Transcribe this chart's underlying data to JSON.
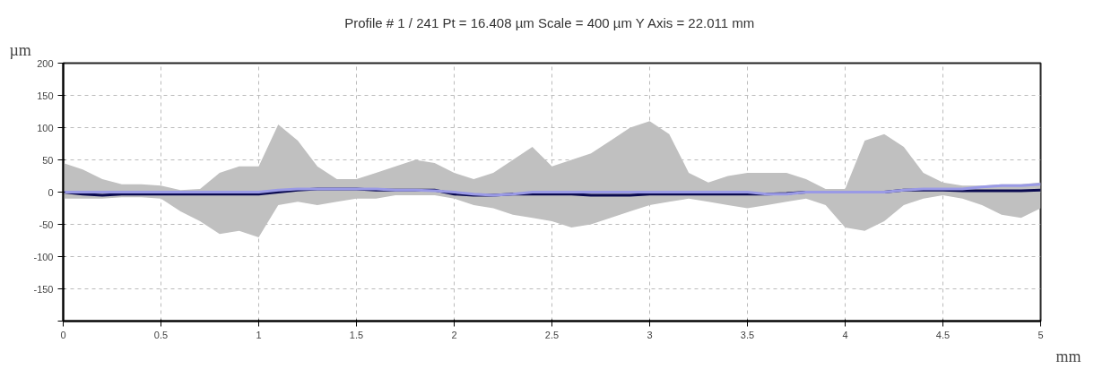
{
  "chart_data": {
    "type": "line",
    "title": "Profile # 1 / 241 Pt = 16.408 µm  Scale = 400 µm Y Axis = 22.011 mm",
    "xlabel": "mm",
    "ylabel": "µm",
    "x": [
      0,
      0.1,
      0.2,
      0.3,
      0.4,
      0.5,
      0.6,
      0.7,
      0.8,
      0.9,
      1.0,
      1.1,
      1.2,
      1.3,
      1.4,
      1.5,
      1.6,
      1.7,
      1.8,
      1.9,
      2.0,
      2.1,
      2.2,
      2.3,
      2.4,
      2.5,
      2.6,
      2.7,
      2.8,
      2.9,
      3.0,
      3.1,
      3.2,
      3.3,
      3.4,
      3.5,
      3.6,
      3.7,
      3.8,
      3.9,
      4.0,
      4.1,
      4.2,
      4.3,
      4.4,
      4.5,
      4.6,
      4.7,
      4.8,
      4.9,
      5.0
    ],
    "series": [
      {
        "color": "#0a0a50",
        "values": [
          0,
          -3,
          -5,
          -3,
          -3,
          -3,
          -3,
          -3,
          -3,
          -3,
          -3,
          0,
          3,
          5,
          5,
          5,
          3,
          3,
          3,
          3,
          -3,
          -5,
          -5,
          -3,
          -3,
          -3,
          -3,
          -5,
          -5,
          -5,
          -3,
          -3,
          -3,
          -3,
          -3,
          -3,
          -3,
          -2,
          0,
          0,
          0,
          0,
          0,
          3,
          3,
          3,
          2,
          2,
          2,
          2,
          3
        ],
        "lower": [
          -10,
          -10,
          -10,
          -8,
          -8,
          -10,
          -30,
          -45,
          -65,
          -60,
          -70,
          -20,
          -15,
          -20,
          -15,
          -10,
          -10,
          -5,
          -5,
          -5,
          -10,
          -20,
          -25,
          -35,
          -40,
          -45,
          -55,
          -50,
          -40,
          -30,
          -20,
          -15,
          -10,
          -15,
          -20,
          -25,
          -20,
          -15,
          -10,
          -20,
          -55,
          -60,
          -45,
          -20,
          -10,
          -5,
          -10,
          -20,
          -35,
          -40,
          -25
        ],
        "upper": [
          45,
          35,
          20,
          12,
          12,
          10,
          3,
          5,
          30,
          40,
          40,
          105,
          80,
          40,
          20,
          20,
          30,
          40,
          50,
          45,
          30,
          20,
          30,
          50,
          70,
          40,
          50,
          60,
          80,
          100,
          110,
          90,
          30,
          15,
          25,
          30,
          30,
          30,
          20,
          5,
          5,
          80,
          90,
          70,
          30,
          15,
          10,
          10,
          12,
          12,
          15
        ]
      },
      {
        "color": "#9a9ae6",
        "values": [
          0,
          0,
          0,
          0,
          0,
          0,
          0,
          0,
          0,
          0,
          0,
          3,
          5,
          5,
          5,
          5,
          5,
          3,
          3,
          2,
          0,
          -3,
          -5,
          -3,
          0,
          0,
          0,
          0,
          0,
          0,
          0,
          0,
          0,
          0,
          0,
          0,
          -3,
          -3,
          0,
          0,
          0,
          0,
          0,
          3,
          5,
          5,
          5,
          8,
          10,
          10,
          12
        ]
      }
    ],
    "xlim": [
      0,
      5
    ],
    "ylim": [
      -200,
      200
    ],
    "xticks": [
      0,
      0.5,
      1,
      1.5,
      2,
      2.5,
      3,
      3.5,
      4,
      4.5,
      5
    ],
    "yticks": [
      {
        "value": -200,
        "label": null
      },
      -150,
      -100,
      -50,
      0,
      50,
      100,
      150,
      200
    ],
    "grid": true,
    "line_style": "solid",
    "marker": "none"
  }
}
